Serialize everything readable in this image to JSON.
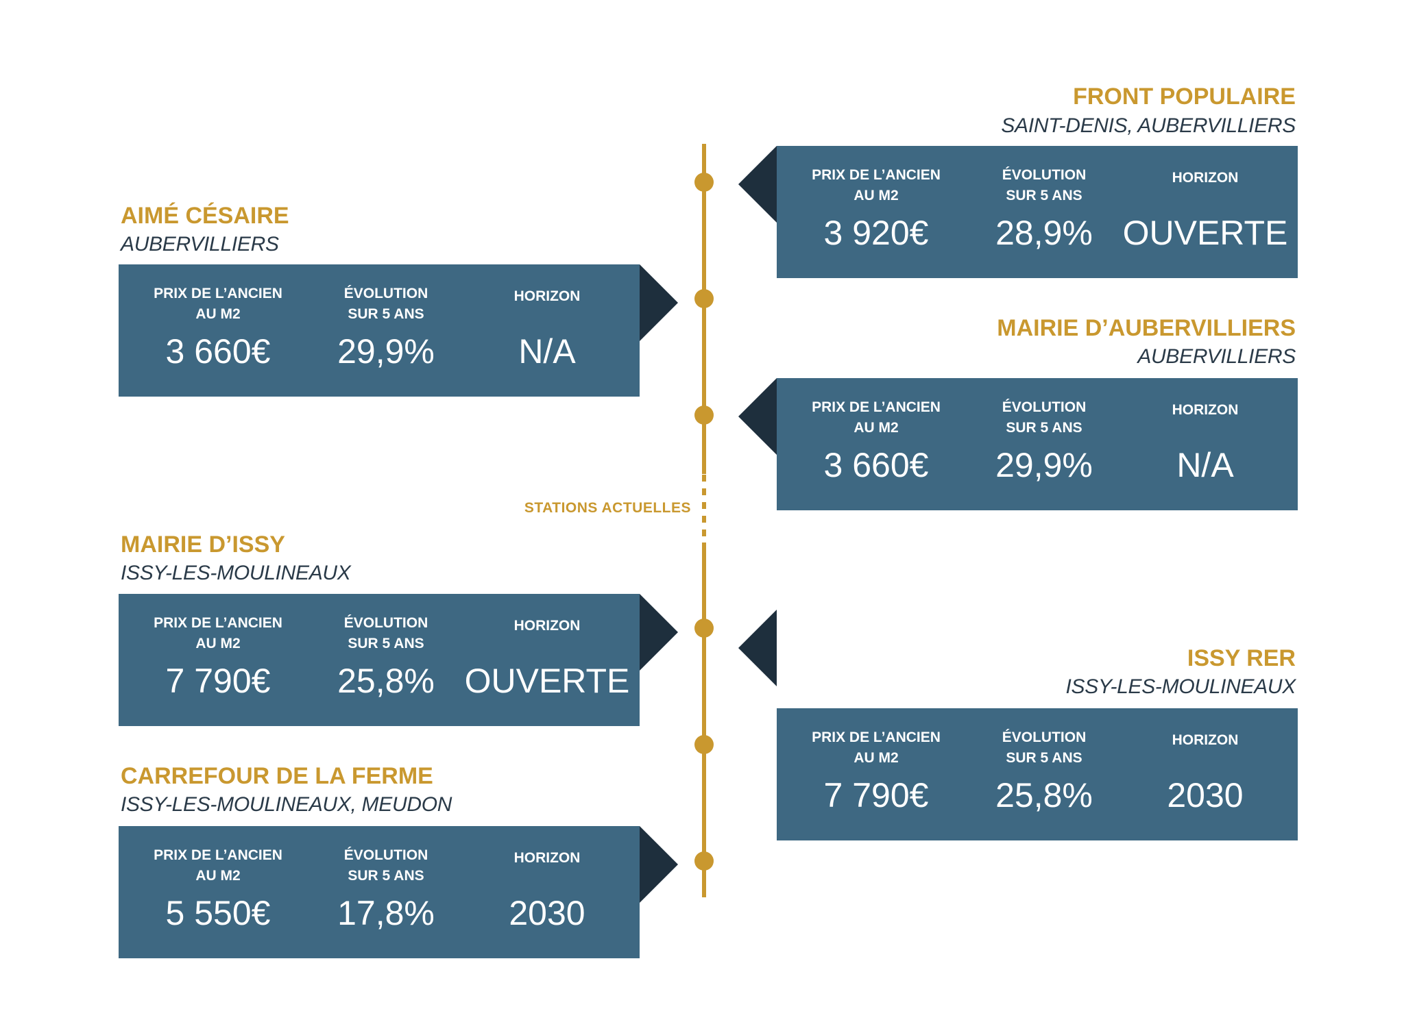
{
  "labels": {
    "price_line1": "PRIX DE L’ANCIEN",
    "price_line2": "AU M2",
    "evolution_line1": "ÉVOLUTION",
    "evolution_line2": "SUR 5 ANS",
    "horizon": "HORIZON"
  },
  "timeline": {
    "stations_actuelles": "STATIONS ACTUELLES"
  },
  "stations": {
    "front_populaire": {
      "name": "FRONT POPULAIRE",
      "commune": "SAINT-DENIS, AUBERVILLIERS",
      "price": "3 920€",
      "evolution": "28,9%",
      "horizon": "OUVERTE"
    },
    "aime_cesaire": {
      "name": "AIMÉ CÉSAIRE",
      "commune": "AUBERVILLIERS",
      "price": "3 660€",
      "evolution": "29,9%",
      "horizon": "N/A"
    },
    "mairie_aubervilliers": {
      "name": "MAIRIE D’AUBERVILLIERS",
      "commune": "AUBERVILLIERS",
      "price": "3 660€",
      "evolution": "29,9%",
      "horizon": "N/A"
    },
    "mairie_issy": {
      "name": "MAIRIE D’ISSY",
      "commune": "ISSY-LES-MOULINEAUX",
      "price": "7 790€",
      "evolution": "25,8%",
      "horizon": "OUVERTE"
    },
    "issy_rer": {
      "name": "ISSY RER",
      "commune": "ISSY-LES-MOULINEAUX",
      "price": "7 790€",
      "evolution": "25,8%",
      "horizon": "2030"
    },
    "carrefour_ferme": {
      "name": "CARREFOUR DE LA FERME",
      "commune": "ISSY-LES-MOULINEAUX, MEUDON",
      "price": "5 550€",
      "evolution": "17,8%",
      "horizon": "2030"
    }
  },
  "colors": {
    "gold": "#c9982f",
    "card_blue": "#3e6882",
    "arrow_navy": "#1e2f3d",
    "commune_text": "#2a3a48"
  }
}
